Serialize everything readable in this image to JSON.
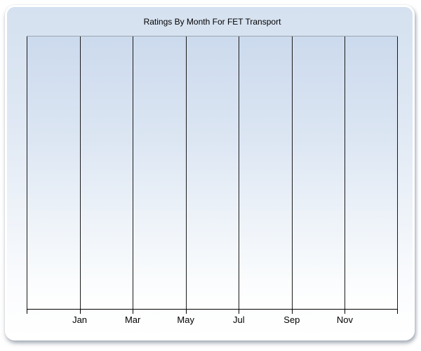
{
  "window": {
    "background": "#ffffff"
  },
  "card": {
    "border_color": "#ffffff",
    "shadow_color": "#7a8594",
    "background_top": "#d5e1f0",
    "background_bottom": "#ffffff"
  },
  "chart_data": {
    "type": "line",
    "title": "Ratings By Month For FET Transport",
    "x_tick_labels": [
      "Jan",
      "Mar",
      "May",
      "Jul",
      "Sep",
      "Nov"
    ],
    "y_tick_labels": [],
    "series": [],
    "x_axis": {
      "columns": 7,
      "label_boundary_offset": 1
    },
    "grid": {
      "vertical": true,
      "horizontal": false
    },
    "legend": "none",
    "plot_background_top": "#ccdaed",
    "plot_background_bottom": "#ffffff",
    "gridline_color": "#1a1a1a",
    "plot_top_border_color": "#9aa5b1",
    "axis_color": "#000000",
    "text_color": "#000000"
  }
}
